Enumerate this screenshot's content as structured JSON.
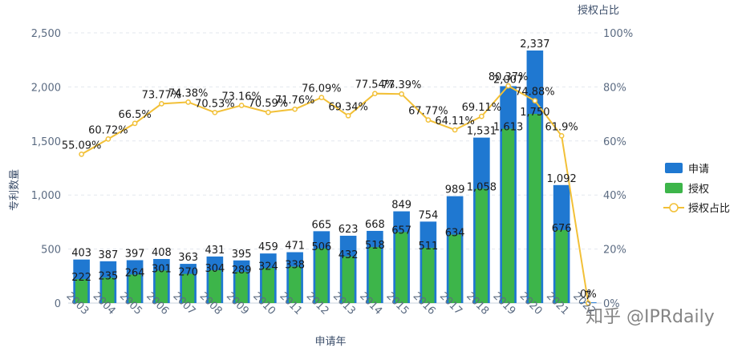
{
  "chart_data": {
    "type": "bar",
    "xlabel": "申请年",
    "ylabel": "专利数量",
    "y2label": "授权占比",
    "ylim": [
      0,
      2500
    ],
    "y2lim": [
      0,
      100
    ],
    "yticks": [
      "0",
      "500",
      "1,000",
      "1,500",
      "2,000",
      "2,500"
    ],
    "y2ticks": [
      "0%",
      "20%",
      "40%",
      "60%",
      "80%",
      "100%"
    ],
    "categories": [
      "2003",
      "2004",
      "2005",
      "2006",
      "2007",
      "2008",
      "2009",
      "2010",
      "2011",
      "2012",
      "2013",
      "2014",
      "2015",
      "2016",
      "2017",
      "2018",
      "2019",
      "2020",
      "2021",
      "2022"
    ],
    "series": [
      {
        "name": "申请",
        "type": "bar",
        "color": "#1f78d1",
        "values": [
          403,
          387,
          397,
          408,
          363,
          431,
          395,
          459,
          471,
          665,
          623,
          668,
          849,
          754,
          989,
          1531,
          2007,
          2337,
          1092,
          7
        ]
      },
      {
        "name": "授权",
        "type": "bar",
        "color": "#3db54a",
        "values": [
          222,
          235,
          264,
          301,
          270,
          304,
          289,
          324,
          338,
          506,
          432,
          518,
          657,
          511,
          634,
          1058,
          1613,
          1750,
          676,
          0
        ]
      },
      {
        "name": "授权占比",
        "type": "line",
        "axis": "right",
        "color": "#f2c037",
        "values": [
          55.09,
          60.72,
          66.5,
          73.77,
          74.38,
          70.53,
          73.16,
          70.59,
          71.76,
          76.09,
          69.34,
          77.54,
          77.39,
          67.77,
          64.11,
          69.11,
          80.37,
          74.88,
          61.9,
          0
        ]
      }
    ],
    "bar_labels": [
      "403",
      "387",
      "397",
      "408",
      "363",
      "431",
      "395",
      "459",
      "471",
      "665",
      "623",
      "668",
      "849",
      "754",
      "989",
      "1,531",
      "2,007",
      "2,337",
      "1,092",
      "7"
    ],
    "bar2_labels": [
      "222",
      "235",
      "264",
      "301",
      "270",
      "304",
      "289",
      "324",
      "338",
      "506",
      "432",
      "518",
      "657",
      "511",
      "634",
      "1,058",
      "1,613",
      "1,750",
      "676",
      "0"
    ],
    "line_labels": [
      "55.09%",
      "60.72%",
      "66.5%",
      "73.77%",
      "74.38%",
      "70.53%",
      "73.16%",
      "70.59%",
      "71.76%",
      "76.09%",
      "69.34%",
      "77.54%",
      "77.39%",
      "67.77%",
      "64.11%",
      "69.11%",
      "80.37%",
      "74.88%",
      "61.9%",
      "0%"
    ],
    "legend": [
      "申请",
      "授权",
      "授权占比"
    ],
    "grid": true,
    "legend_position": "right"
  },
  "watermark": "知乎 @IPRdaily"
}
